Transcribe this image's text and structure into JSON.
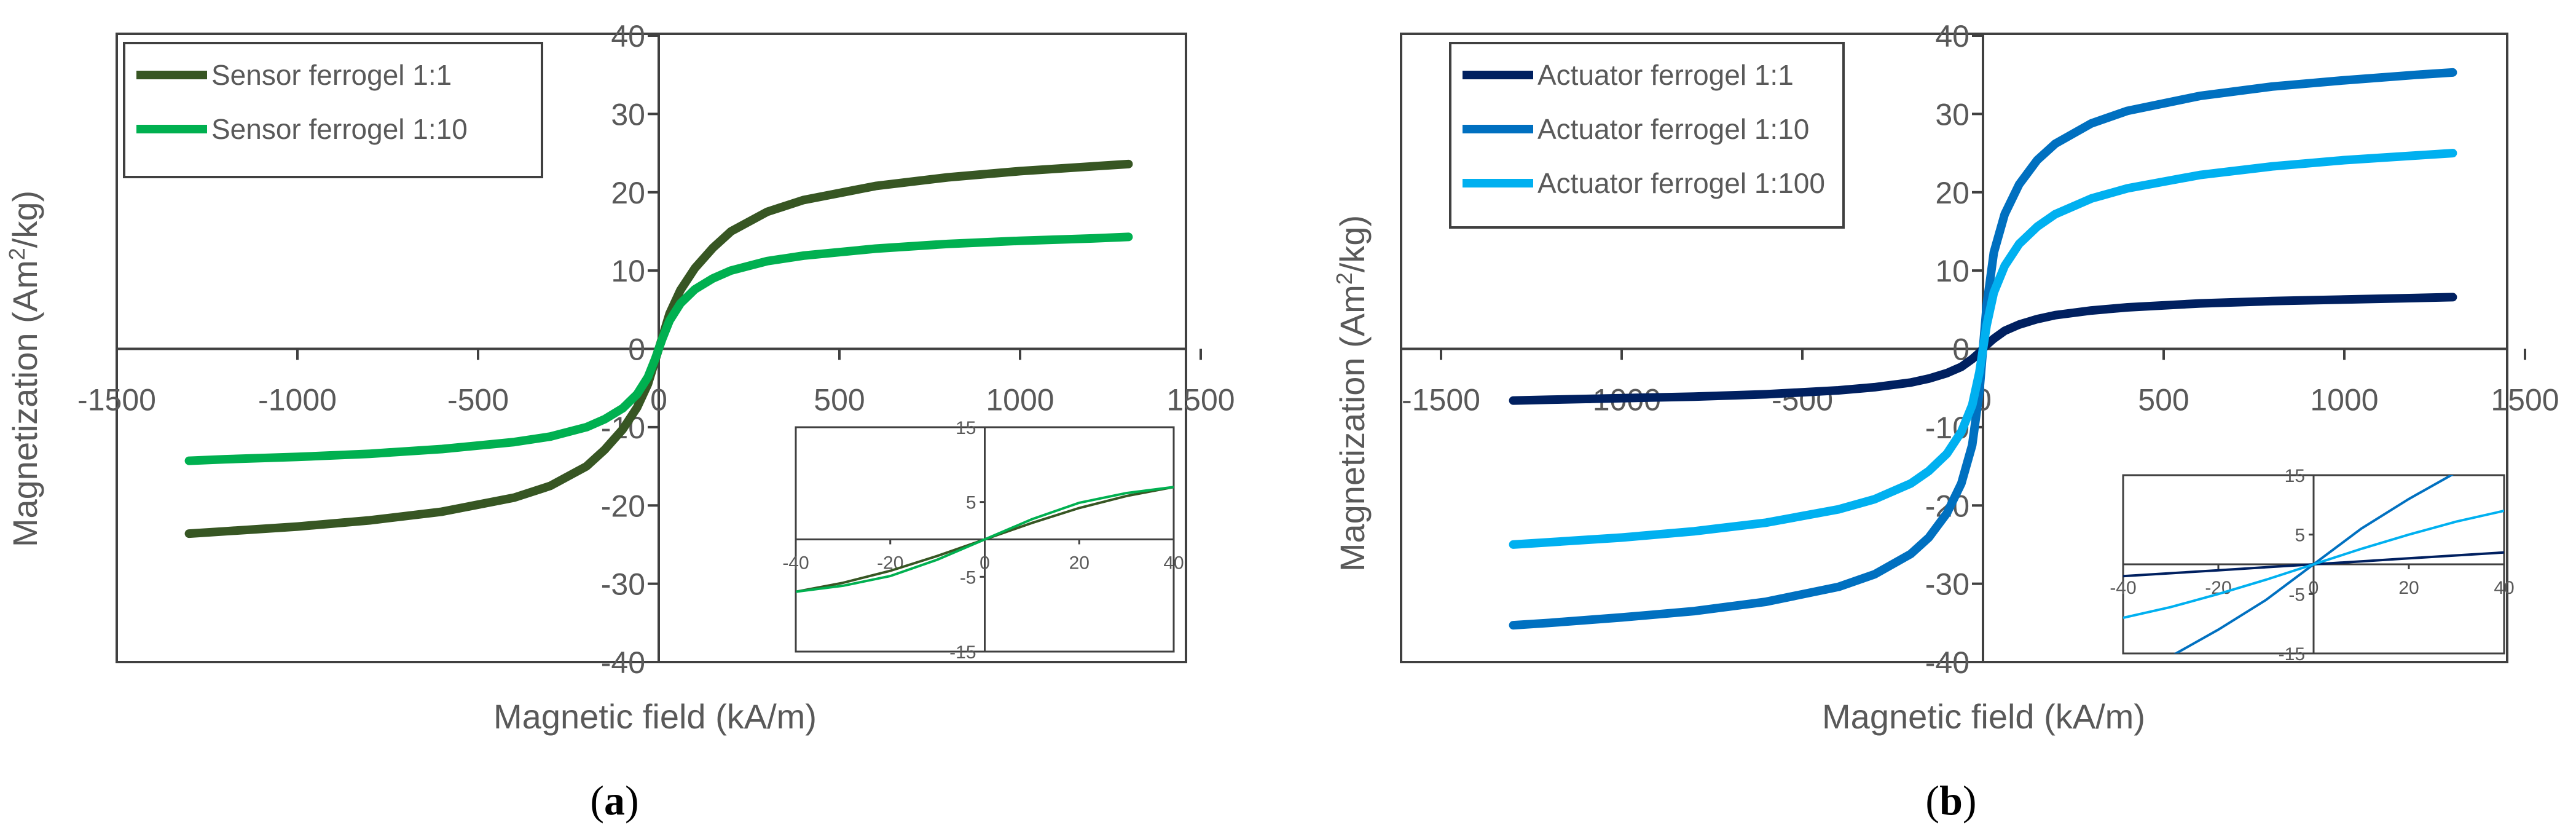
{
  "chart_data": [
    {
      "type": "line",
      "panel_label": "a",
      "xlabel": "Magnetic field (kA/m)",
      "ylabel": "Magnetization (Am2/kg)",
      "ylabel_parts": [
        "Magnetization (Am",
        "2",
        "/kg)"
      ],
      "xlim": [
        -1500,
        1500
      ],
      "ylim": [
        -40,
        40
      ],
      "xticks": [
        -1500,
        -1000,
        -500,
        0,
        500,
        1000,
        1500
      ],
      "yticks": [
        -40,
        -30,
        -20,
        -10,
        0,
        10,
        20,
        30,
        40
      ],
      "legend_position": "top-left",
      "series": [
        {
          "name": "Sensor ferrogel 1:1",
          "color": "#375623",
          "x": [
            -1300,
            -1200,
            -1000,
            -800,
            -600,
            -400,
            -300,
            -200,
            -150,
            -100,
            -60,
            -30,
            -10,
            0,
            10,
            30,
            60,
            100,
            150,
            200,
            300,
            400,
            600,
            800,
            1000,
            1200,
            1300
          ],
          "y": [
            -23.6,
            -23.3,
            -22.7,
            -21.9,
            -20.8,
            -19.0,
            -17.5,
            -15.0,
            -12.9,
            -10.3,
            -7.5,
            -4.5,
            -1.5,
            0,
            1.5,
            4.5,
            7.5,
            10.3,
            12.9,
            15.0,
            17.5,
            19.0,
            20.8,
            21.9,
            22.7,
            23.3,
            23.6
          ]
        },
        {
          "name": "Sensor ferrogel 1:10",
          "color": "#00B050",
          "x": [
            -1300,
            -1200,
            -1000,
            -800,
            -600,
            -400,
            -300,
            -200,
            -150,
            -100,
            -60,
            -30,
            -10,
            0,
            10,
            30,
            60,
            100,
            150,
            200,
            300,
            400,
            600,
            800,
            1000,
            1200,
            1300
          ],
          "y": [
            -14.3,
            -14.1,
            -13.8,
            -13.4,
            -12.8,
            -11.9,
            -11.2,
            -10.0,
            -9.0,
            -7.6,
            -5.8,
            -3.6,
            -1.3,
            0,
            1.3,
            3.6,
            5.8,
            7.6,
            9.0,
            10.0,
            11.2,
            11.9,
            12.8,
            13.4,
            13.8,
            14.1,
            14.3
          ]
        }
      ],
      "inset": {
        "xlim": [
          -40,
          40
        ],
        "ylim": [
          -15,
          15
        ],
        "xticks": [
          -40,
          -20,
          0,
          20,
          40
        ],
        "yticks": [
          -15,
          -5,
          5,
          15
        ],
        "xticklabels": [
          "-40",
          "-20",
          "0",
          "20",
          "40"
        ],
        "yticklabels": [
          "-15",
          "-5",
          "5",
          "15"
        ],
        "series": [
          {
            "color": "#375623",
            "x": [
              -40,
              -30,
              -20,
              -10,
              0,
              10,
              20,
              30,
              40
            ],
            "y": [
              -7.0,
              -5.8,
              -4.2,
              -2.2,
              0,
              2.2,
              4.2,
              5.8,
              7.0
            ]
          },
          {
            "color": "#00B050",
            "x": [
              -40,
              -30,
              -20,
              -10,
              0,
              10,
              20,
              30,
              40
            ],
            "y": [
              -7.0,
              -6.2,
              -4.9,
              -2.7,
              0,
              2.7,
              4.9,
              6.2,
              7.0
            ]
          }
        ]
      }
    },
    {
      "type": "line",
      "panel_label": "b",
      "xlabel": "Magnetic field (kA/m)",
      "ylabel": "Magnetization (Am2/kg)",
      "ylabel_parts": [
        "Magnetization (Am",
        "2",
        "/kg)"
      ],
      "xlim": [
        -1500,
        1500
      ],
      "ylim": [
        -40,
        40
      ],
      "xticks": [
        -1500,
        -1000,
        -500,
        0,
        500,
        1000,
        1500
      ],
      "yticks": [
        -40,
        -30,
        -20,
        -10,
        0,
        10,
        20,
        30,
        40
      ],
      "legend_position": "top-left",
      "series": [
        {
          "name": "Actuator ferrogel 1:1",
          "color": "#002060",
          "x": [
            -1300,
            -1200,
            -1000,
            -800,
            -600,
            -400,
            -300,
            -200,
            -150,
            -100,
            -60,
            -30,
            -10,
            0,
            10,
            30,
            60,
            100,
            150,
            200,
            300,
            400,
            600,
            800,
            1000,
            1200,
            1300
          ],
          "y": [
            -6.6,
            -6.5,
            -6.3,
            -6.1,
            -5.8,
            -5.3,
            -4.9,
            -4.3,
            -3.8,
            -3.1,
            -2.3,
            -1.3,
            -0.5,
            0,
            0.5,
            1.3,
            2.3,
            3.1,
            3.8,
            4.3,
            4.9,
            5.3,
            5.8,
            6.1,
            6.3,
            6.5,
            6.6
          ]
        },
        {
          "name": "Actuator ferrogel 1:10",
          "color": "#0070C0",
          "x": [
            -1300,
            -1200,
            -1000,
            -800,
            -600,
            -400,
            -300,
            -200,
            -150,
            -100,
            -60,
            -30,
            -10,
            0,
            10,
            30,
            60,
            100,
            150,
            200,
            300,
            400,
            600,
            800,
            1000,
            1200,
            1300
          ],
          "y": [
            -35.3,
            -35.0,
            -34.3,
            -33.5,
            -32.3,
            -30.4,
            -28.8,
            -26.2,
            -24.1,
            -21.0,
            -17.2,
            -12.3,
            -5.5,
            0,
            5.5,
            12.3,
            17.2,
            21.0,
            24.1,
            26.2,
            28.8,
            30.4,
            32.3,
            33.5,
            34.3,
            35.0,
            35.3
          ]
        },
        {
          "name": "Actuator ferrogel 1:100",
          "color": "#00B0F0",
          "x": [
            -1300,
            -1200,
            -1000,
            -800,
            -600,
            -400,
            -300,
            -200,
            -150,
            -100,
            -60,
            -30,
            -10,
            0,
            10,
            30,
            60,
            100,
            150,
            200,
            300,
            400,
            600,
            800,
            1000,
            1200,
            1300
          ],
          "y": [
            -25.0,
            -24.7,
            -24.1,
            -23.3,
            -22.2,
            -20.5,
            -19.2,
            -17.2,
            -15.6,
            -13.4,
            -10.6,
            -7.2,
            -3.0,
            0,
            3.0,
            7.2,
            10.6,
            13.4,
            15.6,
            17.2,
            19.2,
            20.5,
            22.2,
            23.3,
            24.1,
            24.7,
            25.0
          ]
        }
      ],
      "inset": {
        "xlim": [
          -40,
          40
        ],
        "ylim": [
          -15,
          15
        ],
        "xticks": [
          -40,
          -20,
          0,
          20,
          40
        ],
        "yticks": [
          -15,
          -5,
          5,
          15
        ],
        "xticklabels": [
          "-40",
          "-20",
          "0",
          "20",
          "40"
        ],
        "yticklabels": [
          "-15",
          "-5",
          "5",
          "15"
        ],
        "series": [
          {
            "color": "#002060",
            "x": [
              -40,
              -30,
              -20,
              -10,
              0,
              10,
              20,
              30,
              40
            ],
            "y": [
              -2.0,
              -1.5,
              -1.0,
              -0.5,
              0,
              0.5,
              1.0,
              1.5,
              2.0
            ]
          },
          {
            "color": "#0070C0",
            "x": [
              -40,
              -30,
              -20,
              -10,
              0,
              10,
              20,
              30,
              40
            ],
            "y": [
              -19.0,
              -15.5,
              -11.0,
              -6.0,
              0,
              6.0,
              11.0,
              15.5,
              19.0
            ]
          },
          {
            "color": "#00B0F0",
            "x": [
              -40,
              -30,
              -20,
              -10,
              0,
              10,
              20,
              30,
              40
            ],
            "y": [
              -9.0,
              -7.2,
              -5.0,
              -2.6,
              0,
              2.6,
              5.0,
              7.2,
              9.0
            ]
          }
        ]
      }
    }
  ]
}
